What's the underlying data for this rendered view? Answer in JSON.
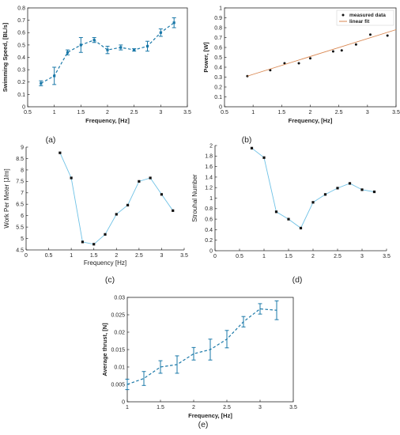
{
  "colors": {
    "teal": "#1a78a8",
    "light_blue": "#6fc2e6",
    "orange": "#d9864f",
    "marker": "#111111",
    "frame": "#262626"
  },
  "chart_data": [
    {
      "id": "a",
      "type": "line",
      "panel_label": "(a)",
      "xlabel": "Frequency, [Hz]",
      "ylabel": "Swimming Speed, [BL/s]",
      "xlim": [
        0.5,
        3.5
      ],
      "ylim": [
        0,
        0.8
      ],
      "xticks": [
        "0.5",
        "1",
        "1.5",
        "2",
        "2.5",
        "3",
        "3.5"
      ],
      "yticks": [
        "0",
        "0.1",
        "0.2",
        "0.3",
        "0.4",
        "0.5",
        "0.6",
        "0.7",
        "0.8"
      ],
      "grid": false,
      "series": [
        {
          "x": [
            0.75,
            1.0,
            1.25,
            1.5,
            1.75,
            2.0,
            2.25,
            2.5,
            2.75,
            3.0,
            3.25
          ],
          "y": [
            0.19,
            0.25,
            0.44,
            0.5,
            0.54,
            0.46,
            0.48,
            0.46,
            0.49,
            0.6,
            0.68
          ],
          "err": [
            0.02,
            0.07,
            0.02,
            0.06,
            0.02,
            0.03,
            0.02,
            0.01,
            0.04,
            0.03,
            0.04
          ],
          "style": "dashed",
          "color": "#1a78a8",
          "marker": "square"
        }
      ]
    },
    {
      "id": "b",
      "type": "scatter",
      "panel_label": "(b)",
      "xlabel": "Frequency, [Hz]",
      "ylabel": "Power, [W]",
      "xlim": [
        0.5,
        3.5
      ],
      "ylim": [
        0,
        1
      ],
      "xticks": [
        "0.5",
        "1",
        "1.5",
        "2",
        "2.5",
        "3",
        "3.5"
      ],
      "yticks": [
        "0",
        "0.1",
        "0.2",
        "0.3",
        "0.4",
        "0.5",
        "0.6",
        "0.7",
        "0.8",
        "0.9",
        "1"
      ],
      "grid": false,
      "legend": {
        "placement": "top-right",
        "entries": [
          "measured data",
          "linear fit"
        ]
      },
      "series": [
        {
          "name": "measured data",
          "x": [
            0.9,
            1.3,
            1.55,
            1.8,
            2.0,
            2.4,
            2.55,
            2.8,
            3.05,
            3.35
          ],
          "y": [
            0.31,
            0.37,
            0.44,
            0.44,
            0.49,
            0.56,
            0.57,
            0.63,
            0.73,
            0.72
          ],
          "color": "#111111",
          "marker": "dot"
        },
        {
          "name": "linear fit",
          "x": [
            0.9,
            3.5
          ],
          "y": [
            0.31,
            0.78
          ],
          "style": "solid",
          "color": "#d9864f"
        }
      ]
    },
    {
      "id": "c",
      "type": "line",
      "panel_label": "(c)",
      "xlabel": "Frequency [Hz]",
      "ylabel": "Work Per Meter [J/m]",
      "xlim": [
        0,
        3.5
      ],
      "ylim": [
        4.5,
        9
      ],
      "xticks": [
        "0",
        "0.5",
        "1",
        "1.5",
        "2",
        "2.5",
        "3",
        "3.5"
      ],
      "yticks": [
        "4.5",
        "5",
        "5.5",
        "6",
        "6.5",
        "7",
        "7.5",
        "8",
        "8.5",
        "9"
      ],
      "grid": false,
      "series": [
        {
          "x": [
            0.75,
            1.0,
            1.25,
            1.5,
            1.75,
            2.0,
            2.25,
            2.5,
            2.75,
            3.0,
            3.25
          ],
          "y": [
            8.75,
            7.65,
            4.85,
            4.75,
            5.18,
            6.06,
            6.46,
            7.5,
            7.65,
            6.93,
            6.22
          ],
          "style": "solid",
          "color": "#6fc2e6",
          "marker": "square"
        }
      ]
    },
    {
      "id": "d",
      "type": "line",
      "panel_label": "(d)",
      "xlabel": "",
      "ylabel": "Strouhal Number",
      "xlim": [
        0,
        3.5
      ],
      "ylim": [
        0,
        2
      ],
      "xticks": [
        "0",
        "0.5",
        "1",
        "1.5",
        "2",
        "2.5",
        "3",
        "3.5"
      ],
      "yticks": [
        "0",
        "0.2",
        "0.4",
        "0.6",
        "0.8",
        "1",
        "1.2",
        "1.4",
        "1.6",
        "1.8",
        "2"
      ],
      "grid": false,
      "series": [
        {
          "x": [
            0.75,
            1.0,
            1.25,
            1.5,
            1.75,
            2.0,
            2.25,
            2.5,
            2.75,
            3.0,
            3.25
          ],
          "y": [
            1.95,
            1.77,
            0.74,
            0.6,
            0.43,
            0.92,
            1.07,
            1.19,
            1.28,
            1.16,
            1.12
          ],
          "style": "solid",
          "color": "#6fc2e6",
          "marker": "square"
        }
      ]
    },
    {
      "id": "e",
      "type": "line",
      "panel_label": "(e)",
      "xlabel": "Frequency, [Hz]",
      "ylabel": "Average thrust, [N]",
      "xlim": [
        1,
        3.5
      ],
      "ylim": [
        0,
        0.03
      ],
      "xticks": [
        "1",
        "1.5",
        "2",
        "2.5",
        "3",
        "3.5"
      ],
      "yticks": [
        "0",
        "0.005",
        "0.01",
        "0.015",
        "0.02",
        "0.025",
        "0.03"
      ],
      "grid": false,
      "series": [
        {
          "x": [
            1.0,
            1.25,
            1.5,
            1.75,
            2.0,
            2.25,
            2.5,
            2.75,
            3.0,
            3.25
          ],
          "y": [
            0.005,
            0.0067,
            0.01,
            0.0107,
            0.0138,
            0.015,
            0.018,
            0.023,
            0.0267,
            0.0263
          ],
          "err": [
            0.0015,
            0.002,
            0.0018,
            0.0025,
            0.0018,
            0.003,
            0.0025,
            0.0015,
            0.0015,
            0.0027
          ],
          "style": "dashed",
          "color": "#1a78a8",
          "marker": "none"
        }
      ]
    }
  ]
}
